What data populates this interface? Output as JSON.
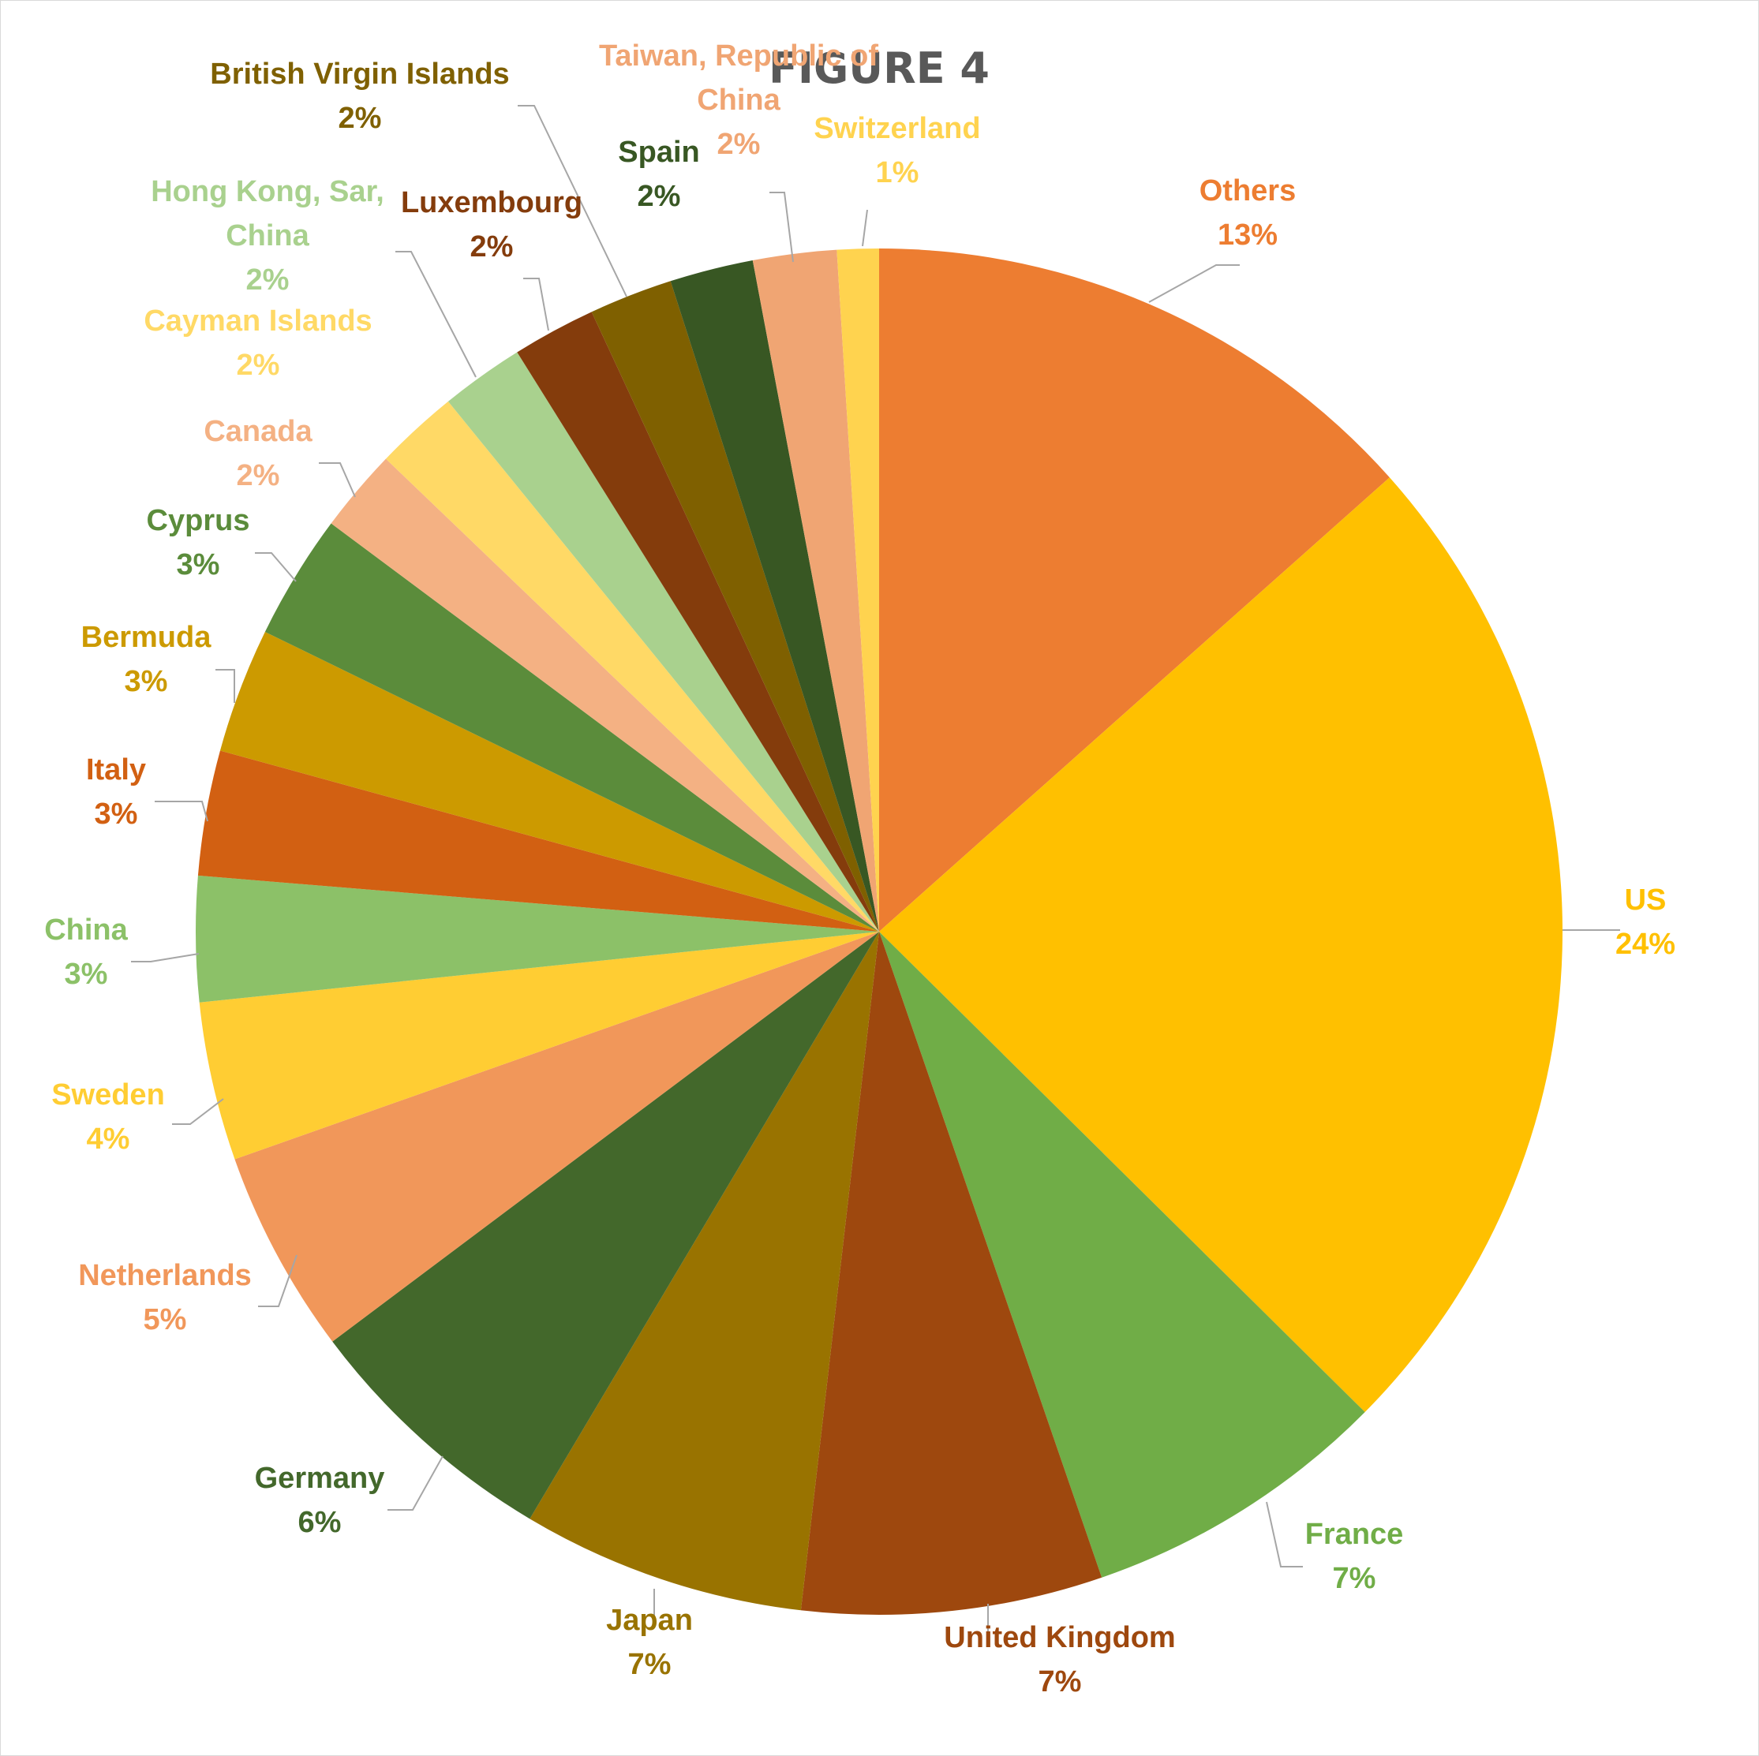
{
  "chart_data": {
    "type": "pie",
    "title": "FIGURE 4",
    "start_angle_deg": 0,
    "direction": "clockwise",
    "slices": [
      {
        "name": "Others",
        "label": "13%",
        "value": 13.6,
        "color": "#ED7D31"
      },
      {
        "name": "US",
        "label": "24%",
        "value": 24.3,
        "color": "#FFC000"
      },
      {
        "name": "France",
        "label": "7%",
        "value": 7.4,
        "color": "#70AD47"
      },
      {
        "name": "United Kingdom",
        "label": "7%",
        "value": 7.2,
        "color": "#9E480E"
      },
      {
        "name": "Japan",
        "label": "7%",
        "value": 6.8,
        "color": "#997300"
      },
      {
        "name": "Germany",
        "label": "6%",
        "value": 6.3,
        "color": "#43682B"
      },
      {
        "name": "Netherlands",
        "label": "5%",
        "value": 4.9,
        "color": "#F1975A"
      },
      {
        "name": "Sweden",
        "label": "4%",
        "value": 3.8,
        "color": "#FFCD33"
      },
      {
        "name": "China",
        "label": "3%",
        "value": 3.0,
        "color": "#8CC168"
      },
      {
        "name": "Italy",
        "label": "3%",
        "value": 3.0,
        "color": "#D26012"
      },
      {
        "name": "Bermuda",
        "label": "3%",
        "value": 3.0,
        "color": "#CC9A00"
      },
      {
        "name": "Cyprus",
        "label": "3%",
        "value": 3.0,
        "color": "#5B8C3B"
      },
      {
        "name": "Canada",
        "label": "2%",
        "value": 2.0,
        "color": "#F4B183"
      },
      {
        "name": "Cayman Islands",
        "label": "2%",
        "value": 2.0,
        "color": "#FFD966"
      },
      {
        "name": "Hong Kong, Sar, China",
        "label": "2%",
        "value": 2.0,
        "color": "#A9D18E"
      },
      {
        "name": "Luxembourg",
        "label": "2%",
        "value": 2.0,
        "color": "#843C0C"
      },
      {
        "name": "British Virgin Islands",
        "label": "2%",
        "value": 2.0,
        "color": "#7F6000"
      },
      {
        "name": "Spain",
        "label": "2%",
        "value": 2.0,
        "color": "#385723"
      },
      {
        "name": "Taiwan, Republic of China",
        "label": "2%",
        "value": 2.0,
        "color": "#F0A573"
      },
      {
        "name": "Switzerland",
        "label": "1%",
        "value": 1.0,
        "color": "#FFD34F"
      }
    ]
  }
}
